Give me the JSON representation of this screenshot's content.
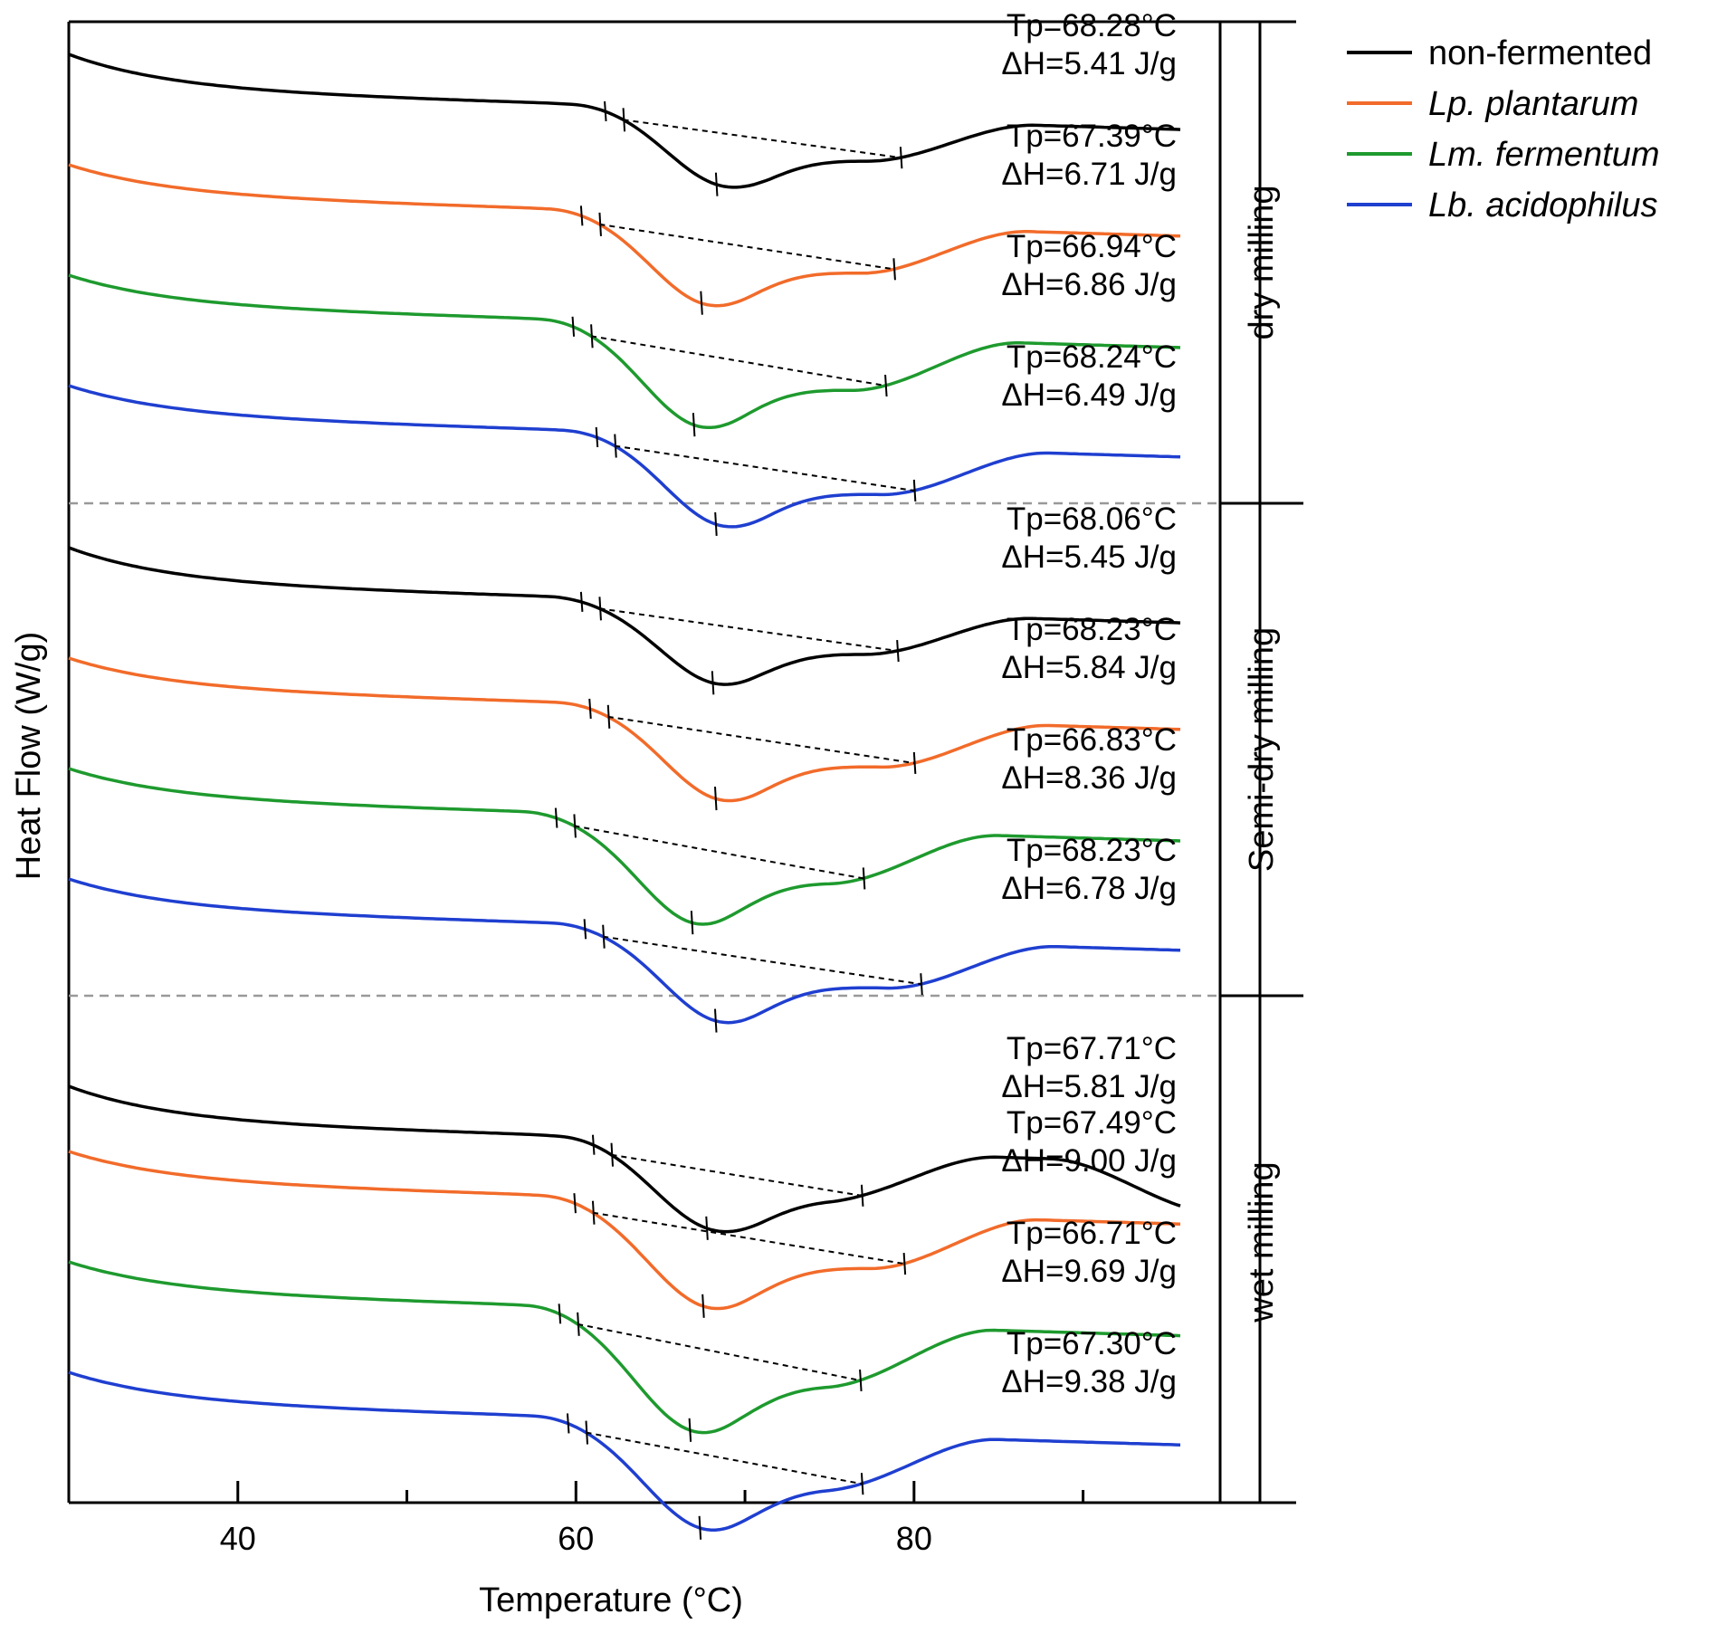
{
  "chart_data": {
    "type": "line",
    "xlabel": "Temperature (°C)",
    "ylabel": "Heat Flow (W/g)",
    "xlim": [
      30,
      98
    ],
    "xticks_major": [
      40,
      60,
      80
    ],
    "xticks_minor": [
      50,
      70,
      90
    ],
    "legend_position": "top-right",
    "series_styles": [
      {
        "name": "non-fermented",
        "color": "#000000",
        "italic": false
      },
      {
        "name": "Lp. plantarum",
        "color": "#F26B2A",
        "italic": true
      },
      {
        "name": "Lm. fermentum",
        "color": "#1E9A2E",
        "italic": true
      },
      {
        "name": "Lb. acidophilus",
        "color": "#1F3FD0",
        "italic": true
      }
    ],
    "groups": [
      {
        "label": "dry milling",
        "curves": [
          {
            "series": "non-fermented",
            "Tp_label": "Tp=68.28°C",
            "dH_label": "ΔH=5.41 J/g",
            "tp": 68.28,
            "onset": 62.8,
            "end": 79.2
          },
          {
            "series": "Lp. plantarum",
            "Tp_label": "Tp=67.39°C",
            "dH_label": "ΔH=6.71 J/g",
            "tp": 67.39,
            "onset": 61.4,
            "end": 78.8
          },
          {
            "series": "Lm. fermentum",
            "Tp_label": "Tp=66.94°C",
            "dH_label": "ΔH=6.86 J/g",
            "tp": 66.94,
            "onset": 60.9,
            "end": 78.3
          },
          {
            "series": "Lb. acidophilus",
            "Tp_label": "Tp=68.24°C",
            "dH_label": "ΔH=6.49 J/g",
            "tp": 68.24,
            "onset": 62.3,
            "end": 80.0
          }
        ]
      },
      {
        "label": "Semi-dry milling",
        "curves": [
          {
            "series": "non-fermented",
            "Tp_label": "Tp=68.06°C",
            "dH_label": "ΔH=5.45 J/g",
            "tp": 68.06,
            "onset": 61.4,
            "end": 79.0
          },
          {
            "series": "Lp. plantarum",
            "Tp_label": "Tp=68.23°C",
            "dH_label": "ΔH=5.84 J/g",
            "tp": 68.23,
            "onset": 61.9,
            "end": 80.0
          },
          {
            "series": "Lm. fermentum",
            "Tp_label": "Tp=66.83°C",
            "dH_label": "ΔH=8.36 J/g",
            "tp": 66.83,
            "onset": 59.9,
            "end": 77.0
          },
          {
            "series": "Lb. acidophilus",
            "Tp_label": "Tp=68.23°C",
            "dH_label": "ΔH=6.78 J/g",
            "tp": 68.23,
            "onset": 61.6,
            "end": 80.4
          }
        ]
      },
      {
        "label": "wet milling",
        "curves": [
          {
            "series": "non-fermented",
            "Tp_label": "Tp=67.71°C",
            "dH_label": "ΔH=5.81 J/g",
            "tp": 67.71,
            "onset": 62.1,
            "end": 76.9
          },
          {
            "series": "Lp. plantarum",
            "Tp_label": "Tp=67.49°C",
            "dH_label": "ΔH=9.00 J/g",
            "tp": 67.49,
            "onset": 61.0,
            "end": 79.4
          },
          {
            "series": "Lm. fermentum",
            "Tp_label": "Tp=66.71°C",
            "dH_label": "ΔH=9.69 J/g",
            "tp": 66.71,
            "onset": 60.1,
            "end": 76.8
          },
          {
            "series": "Lb. acidophilus",
            "Tp_label": "Tp=67.30°C",
            "dH_label": "ΔH=9.38 J/g",
            "tp": 67.3,
            "onset": 60.6,
            "end": 76.9
          }
        ]
      }
    ]
  }
}
